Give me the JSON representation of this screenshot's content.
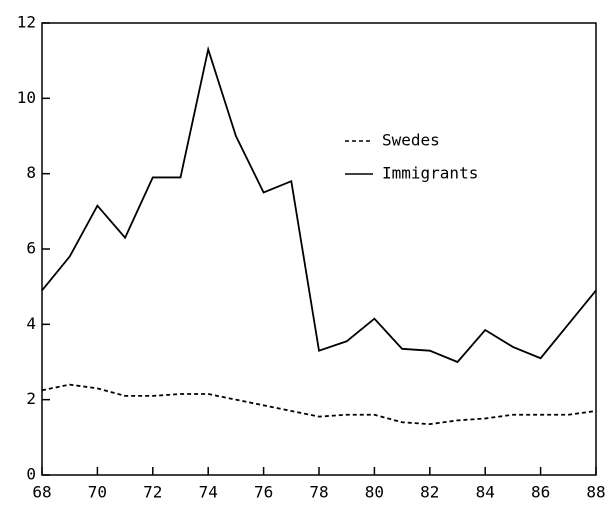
{
  "chart_data": {
    "type": "line",
    "x": [
      68,
      69,
      70,
      71,
      72,
      73,
      74,
      75,
      76,
      77,
      78,
      79,
      80,
      81,
      82,
      83,
      84,
      85,
      86,
      87,
      88
    ],
    "series": [
      {
        "name": "Swedes",
        "color": "#000000",
        "style": "dashed",
        "values": [
          2.25,
          2.4,
          2.3,
          2.1,
          2.1,
          2.15,
          2.15,
          2.0,
          1.85,
          1.7,
          1.55,
          1.6,
          1.6,
          1.4,
          1.35,
          1.45,
          1.5,
          1.6,
          1.6,
          1.6,
          1.7
        ]
      },
      {
        "name": "Immigrants",
        "color": "#000000",
        "style": "solid",
        "values": [
          4.9,
          5.8,
          7.15,
          6.3,
          7.9,
          7.9,
          11.3,
          9.0,
          7.5,
          7.8,
          3.3,
          3.55,
          4.15,
          3.35,
          3.3,
          3.0,
          3.85,
          3.4,
          3.1,
          4.0,
          4.9
        ]
      }
    ],
    "xlim": [
      68,
      88
    ],
    "xticks": [
      68,
      70,
      72,
      74,
      76,
      78,
      80,
      82,
      84,
      86,
      88
    ],
    "ylim": [
      0,
      12
    ],
    "yticks": [
      0,
      2,
      4,
      6,
      8,
      10,
      12
    ],
    "legend_position": "upper right"
  }
}
